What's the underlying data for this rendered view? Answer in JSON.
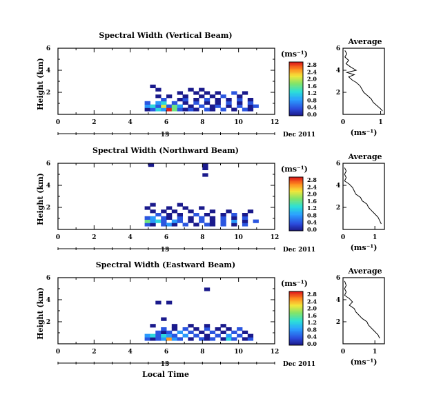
{
  "chart_data": [
    {
      "type": "heatmap",
      "title": "Spectral Width (Vertical Beam)",
      "ylabel": "Height (km)",
      "xlim": [
        0,
        12
      ],
      "ylim": [
        0,
        6
      ],
      "xticks": [
        "0",
        "2",
        "4",
        "6",
        "8",
        "10",
        "12"
      ],
      "yticks": [
        "2",
        "4",
        "6"
      ],
      "date_axis": {
        "day_label": "13",
        "month_label": "Dec 2011"
      },
      "colorbar": {
        "unit": "(ms⁻¹)",
        "labels": [
          "0.0",
          "0.4",
          "0.8",
          "1.2",
          "1.6",
          "2.0",
          "2.4",
          "2.8"
        ],
        "range": [
          0,
          2.8
        ]
      },
      "profile": {
        "title": "Average",
        "xlabel": "(ms⁻¹)",
        "xticks": [
          "0",
          "1"
        ],
        "yticks": [
          "2",
          "4",
          "6"
        ],
        "xlim": [
          0,
          1.1
        ],
        "ylim": [
          0,
          6
        ],
        "points": [
          [
            0.05,
            5.8
          ],
          [
            0.1,
            5.5
          ],
          [
            0.05,
            5.2
          ],
          [
            0.15,
            4.9
          ],
          [
            0.08,
            4.6
          ],
          [
            0.2,
            4.3
          ],
          [
            0.35,
            4.0
          ],
          [
            0.1,
            3.8
          ],
          [
            0.3,
            3.6
          ],
          [
            0.15,
            3.4
          ],
          [
            0.25,
            3.1
          ],
          [
            0.35,
            2.9
          ],
          [
            0.45,
            2.6
          ],
          [
            0.5,
            2.3
          ],
          [
            0.55,
            2.0
          ],
          [
            0.65,
            1.7
          ],
          [
            0.75,
            1.4
          ],
          [
            0.8,
            1.1
          ],
          [
            0.9,
            0.8
          ],
          [
            1.0,
            0.5
          ],
          [
            1.05,
            0.3
          ]
        ]
      },
      "cells": [
        [
          4.8,
          0.3,
          0.0
        ],
        [
          5.1,
          0.3,
          0.4
        ],
        [
          5.4,
          0.3,
          1.2
        ],
        [
          5.7,
          0.3,
          0.8
        ],
        [
          6.0,
          0.3,
          2.8
        ],
        [
          6.3,
          0.3,
          1.6
        ],
        [
          6.6,
          0.3,
          0.4
        ],
        [
          6.9,
          0.3,
          0.0
        ],
        [
          7.2,
          0.3,
          0.4
        ],
        [
          7.5,
          0.3,
          0.0
        ],
        [
          8.1,
          0.3,
          0.4
        ],
        [
          8.4,
          0.3,
          0.0
        ],
        [
          9.0,
          0.3,
          0.4
        ],
        [
          9.6,
          0.3,
          0.0
        ],
        [
          10.2,
          0.3,
          0.4
        ],
        [
          10.5,
          0.3,
          0.0
        ],
        [
          4.8,
          0.6,
          0.8
        ],
        [
          5.1,
          0.6,
          1.2
        ],
        [
          5.4,
          0.6,
          0.4
        ],
        [
          5.7,
          0.6,
          2.0
        ],
        [
          6.0,
          0.6,
          0.4
        ],
        [
          6.3,
          0.6,
          1.6
        ],
        [
          6.6,
          0.6,
          0.8
        ],
        [
          7.2,
          0.6,
          0.0
        ],
        [
          7.8,
          0.6,
          0.4
        ],
        [
          8.4,
          0.6,
          0.0
        ],
        [
          8.7,
          0.6,
          0.4
        ],
        [
          9.3,
          0.6,
          0.0
        ],
        [
          9.9,
          0.6,
          0.4
        ],
        [
          10.5,
          0.6,
          0.0
        ],
        [
          10.8,
          0.6,
          0.4
        ],
        [
          4.8,
          0.9,
          0.4
        ],
        [
          5.4,
          0.9,
          0.8
        ],
        [
          5.7,
          0.9,
          1.2
        ],
        [
          6.3,
          0.9,
          0.4
        ],
        [
          6.9,
          0.9,
          0.0
        ],
        [
          7.5,
          0.9,
          0.4
        ],
        [
          8.1,
          0.9,
          0.0
        ],
        [
          8.7,
          0.9,
          0.0
        ],
        [
          9.3,
          0.9,
          0.4
        ],
        [
          9.9,
          0.9,
          0.0
        ],
        [
          10.5,
          0.9,
          0.4
        ],
        [
          5.7,
          1.2,
          0.4
        ],
        [
          6.6,
          1.2,
          0.0
        ],
        [
          6.9,
          1.2,
          0.4
        ],
        [
          7.5,
          1.2,
          0.0
        ],
        [
          8.1,
          1.2,
          0.4
        ],
        [
          8.7,
          1.2,
          0.0
        ],
        [
          9.3,
          1.2,
          0.0
        ],
        [
          9.9,
          1.2,
          0.4
        ],
        [
          10.5,
          1.2,
          0.0
        ],
        [
          5.4,
          1.5,
          0.0
        ],
        [
          6.0,
          1.5,
          0.0
        ],
        [
          6.9,
          1.5,
          0.0
        ],
        [
          7.8,
          1.5,
          0.0
        ],
        [
          8.4,
          1.5,
          0.0
        ],
        [
          9.0,
          1.5,
          0.4
        ],
        [
          9.9,
          1.5,
          0.0
        ],
        [
          6.6,
          1.8,
          0.0
        ],
        [
          7.5,
          1.8,
          0.0
        ],
        [
          8.1,
          1.8,
          0.0
        ],
        [
          8.7,
          1.8,
          0.0
        ],
        [
          9.6,
          1.8,
          0.4
        ],
        [
          10.2,
          1.8,
          0.0
        ],
        [
          7.2,
          2.1,
          0.0
        ],
        [
          7.8,
          2.1,
          0.0
        ],
        [
          5.1,
          2.4,
          0.0
        ],
        [
          5.4,
          2.1,
          0.0
        ]
      ]
    },
    {
      "type": "heatmap",
      "title": "Spectral Width (Northward Beam)",
      "ylabel": "Height (km)",
      "xlim": [
        0,
        12
      ],
      "ylim": [
        0,
        6
      ],
      "xticks": [
        "0",
        "2",
        "4",
        "6",
        "8",
        "10",
        "12"
      ],
      "yticks": [
        "2",
        "4",
        "6"
      ],
      "date_axis": {
        "day_label": "13",
        "month_label": "Dec 2011"
      },
      "colorbar": {
        "unit": "(ms⁻¹)",
        "labels": [
          "0.0",
          "0.4",
          "0.8",
          "1.2",
          "1.6",
          "2.0",
          "2.4",
          "2.8"
        ],
        "range": [
          0,
          2.8
        ]
      },
      "profile": {
        "title": "Average",
        "xlabel": "(ms⁻¹)",
        "xticks": [
          "0",
          "1"
        ],
        "yticks": [
          "2",
          "4",
          "6"
        ],
        "xlim": [
          0,
          1.3
        ],
        "ylim": [
          0,
          6
        ],
        "points": [
          [
            0.05,
            5.6
          ],
          [
            0.1,
            5.3
          ],
          [
            0.05,
            5.0
          ],
          [
            0.1,
            4.7
          ],
          [
            0.05,
            4.4
          ],
          [
            0.2,
            4.1
          ],
          [
            0.3,
            3.8
          ],
          [
            0.35,
            3.5
          ],
          [
            0.4,
            3.2
          ],
          [
            0.55,
            2.9
          ],
          [
            0.6,
            2.6
          ],
          [
            0.75,
            2.3
          ],
          [
            0.8,
            2.0
          ],
          [
            0.9,
            1.7
          ],
          [
            1.0,
            1.4
          ],
          [
            1.1,
            1.1
          ],
          [
            1.15,
            0.8
          ],
          [
            1.2,
            0.5
          ]
        ]
      },
      "cells": [
        [
          4.8,
          0.3,
          0.4
        ],
        [
          5.1,
          0.3,
          0.0
        ],
        [
          5.7,
          0.3,
          0.4
        ],
        [
          6.0,
          0.3,
          0.8
        ],
        [
          6.3,
          0.3,
          0.0
        ],
        [
          6.9,
          0.3,
          0.4
        ],
        [
          7.5,
          0.3,
          0.0
        ],
        [
          8.1,
          0.3,
          0.4
        ],
        [
          8.4,
          0.3,
          0.0
        ],
        [
          9.0,
          0.3,
          0.4
        ],
        [
          9.6,
          0.3,
          0.0
        ],
        [
          10.2,
          0.3,
          0.4
        ],
        [
          4.8,
          0.6,
          1.6
        ],
        [
          5.1,
          0.6,
          0.8
        ],
        [
          5.4,
          0.6,
          1.2
        ],
        [
          5.7,
          0.6,
          0.4
        ],
        [
          6.3,
          0.6,
          0.8
        ],
        [
          6.6,
          0.6,
          0.4
        ],
        [
          7.2,
          0.6,
          0.0
        ],
        [
          7.8,
          0.6,
          0.4
        ],
        [
          8.4,
          0.6,
          0.0
        ],
        [
          9.0,
          0.6,
          0.4
        ],
        [
          9.6,
          0.6,
          0.8
        ],
        [
          10.2,
          0.6,
          0.0
        ],
        [
          10.8,
          0.6,
          0.4
        ],
        [
          4.8,
          0.9,
          0.4
        ],
        [
          5.1,
          0.9,
          0.8
        ],
        [
          5.7,
          0.9,
          0.4
        ],
        [
          6.0,
          0.9,
          0.0
        ],
        [
          6.6,
          0.9,
          0.4
        ],
        [
          7.2,
          0.9,
          0.0
        ],
        [
          7.8,
          0.9,
          0.4
        ],
        [
          8.4,
          0.9,
          0.0
        ],
        [
          9.0,
          0.9,
          0.4
        ],
        [
          9.6,
          0.9,
          0.0
        ],
        [
          10.2,
          0.9,
          0.4
        ],
        [
          5.4,
          1.2,
          0.4
        ],
        [
          6.0,
          1.2,
          0.0
        ],
        [
          6.6,
          1.2,
          0.0
        ],
        [
          7.5,
          1.2,
          0.4
        ],
        [
          8.1,
          1.2,
          0.0
        ],
        [
          9.0,
          1.2,
          0.0
        ],
        [
          9.6,
          1.2,
          0.4
        ],
        [
          10.2,
          1.2,
          0.0
        ],
        [
          5.1,
          1.5,
          0.0
        ],
        [
          5.7,
          1.5,
          0.0
        ],
        [
          6.3,
          1.5,
          0.0
        ],
        [
          7.2,
          1.5,
          0.0
        ],
        [
          8.4,
          1.5,
          0.0
        ],
        [
          9.3,
          1.5,
          0.0
        ],
        [
          10.5,
          1.5,
          0.0
        ],
        [
          4.8,
          1.8,
          0.0
        ],
        [
          6.0,
          1.8,
          0.0
        ],
        [
          6.9,
          1.8,
          0.0
        ],
        [
          7.8,
          1.8,
          0.0
        ],
        [
          5.1,
          2.1,
          0.0
        ],
        [
          6.6,
          2.1,
          0.0
        ],
        [
          5.0,
          5.7,
          0.0
        ],
        [
          8.0,
          5.7,
          0.0
        ],
        [
          8.0,
          5.4,
          0.0
        ],
        [
          8.0,
          4.8,
          0.0
        ]
      ]
    },
    {
      "type": "heatmap",
      "title": "Spectral Width (Eastward Beam)",
      "ylabel": "Height (km)",
      "xlabel": "Local Time",
      "xlim": [
        0,
        12
      ],
      "ylim": [
        0,
        6
      ],
      "xticks": [
        "0",
        "2",
        "4",
        "6",
        "8",
        "10",
        "12"
      ],
      "yticks": [
        "2",
        "4",
        "6"
      ],
      "date_axis": {
        "day_label": "13",
        "month_label": "Dec 2011"
      },
      "colorbar": {
        "unit": "(ms⁻¹)",
        "labels": [
          "0.0",
          "0.4",
          "0.8",
          "1.2",
          "1.6",
          "2.0",
          "2.4",
          "2.8"
        ],
        "range": [
          0,
          2.8
        ]
      },
      "profile": {
        "title": "Average",
        "xlabel": "(ms⁻¹)",
        "xticks": [
          "0",
          "1"
        ],
        "yticks": [
          "2",
          "4",
          "6"
        ],
        "xlim": [
          0,
          1.3
        ],
        "ylim": [
          0,
          6
        ],
        "points": [
          [
            0.05,
            5.7
          ],
          [
            0.1,
            5.3
          ],
          [
            0.05,
            5.0
          ],
          [
            0.1,
            4.7
          ],
          [
            0.05,
            4.4
          ],
          [
            0.2,
            4.1
          ],
          [
            0.3,
            3.8
          ],
          [
            0.2,
            3.5
          ],
          [
            0.35,
            3.2
          ],
          [
            0.4,
            2.9
          ],
          [
            0.5,
            2.6
          ],
          [
            0.6,
            2.3
          ],
          [
            0.75,
            2.0
          ],
          [
            0.8,
            1.7
          ],
          [
            0.9,
            1.4
          ],
          [
            1.0,
            1.1
          ],
          [
            1.1,
            0.8
          ],
          [
            1.15,
            0.5
          ]
        ]
      },
      "cells": [
        [
          4.8,
          0.3,
          0.4
        ],
        [
          5.1,
          0.3,
          0.0
        ],
        [
          5.4,
          0.3,
          0.4
        ],
        [
          5.7,
          0.3,
          0.8
        ],
        [
          6.0,
          0.3,
          2.4
        ],
        [
          6.3,
          0.3,
          0.8
        ],
        [
          6.6,
          0.3,
          0.4
        ],
        [
          7.2,
          0.3,
          0.0
        ],
        [
          7.8,
          0.3,
          0.4
        ],
        [
          8.1,
          0.3,
          0.0
        ],
        [
          8.4,
          0.3,
          0.4
        ],
        [
          9.0,
          0.3,
          0.0
        ],
        [
          9.3,
          0.3,
          1.2
        ],
        [
          9.6,
          0.3,
          0.4
        ],
        [
          10.2,
          0.3,
          0.0
        ],
        [
          10.5,
          0.3,
          0.4
        ],
        [
          4.8,
          0.6,
          0.8
        ],
        [
          5.1,
          0.6,
          1.2
        ],
        [
          5.4,
          0.6,
          0.4
        ],
        [
          5.7,
          0.6,
          1.2
        ],
        [
          6.0,
          0.6,
          0.8
        ],
        [
          6.3,
          0.6,
          0.4
        ],
        [
          6.9,
          0.6,
          0.8
        ],
        [
          7.5,
          0.6,
          0.4
        ],
        [
          8.1,
          0.6,
          0.0
        ],
        [
          8.7,
          0.6,
          0.4
        ],
        [
          9.3,
          0.6,
          0.8
        ],
        [
          9.9,
          0.6,
          0.4
        ],
        [
          10.5,
          0.6,
          0.0
        ],
        [
          5.4,
          0.9,
          0.4
        ],
        [
          5.7,
          0.9,
          0.0
        ],
        [
          6.0,
          0.9,
          0.4
        ],
        [
          6.6,
          0.9,
          0.8
        ],
        [
          7.2,
          0.9,
          0.4
        ],
        [
          7.8,
          0.9,
          0.0
        ],
        [
          8.4,
          0.9,
          0.4
        ],
        [
          9.0,
          0.9,
          0.0
        ],
        [
          9.6,
          0.9,
          0.4
        ],
        [
          10.2,
          0.9,
          0.0
        ],
        [
          5.7,
          1.2,
          0.4
        ],
        [
          6.3,
          1.2,
          0.0
        ],
        [
          6.9,
          1.2,
          0.4
        ],
        [
          7.5,
          1.2,
          0.0
        ],
        [
          8.1,
          1.2,
          0.4
        ],
        [
          8.7,
          1.2,
          0.0
        ],
        [
          9.3,
          1.2,
          0.0
        ],
        [
          9.9,
          1.2,
          0.4
        ],
        [
          5.1,
          1.5,
          0.0
        ],
        [
          6.3,
          1.5,
          0.0
        ],
        [
          7.2,
          1.5,
          0.0
        ],
        [
          8.1,
          1.5,
          0.0
        ],
        [
          9.0,
          1.5,
          0.0
        ],
        [
          5.7,
          2.1,
          0.0
        ],
        [
          6.0,
          3.6,
          0.0
        ],
        [
          5.4,
          3.6,
          0.0
        ],
        [
          8.1,
          4.8,
          0.0
        ]
      ]
    }
  ]
}
